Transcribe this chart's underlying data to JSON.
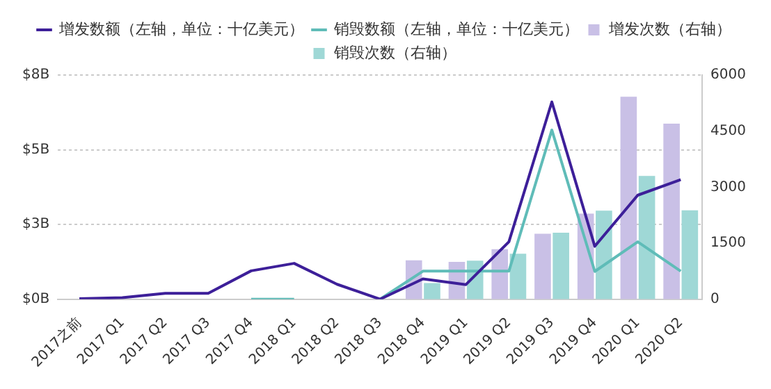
{
  "chart_data": {
    "type": "bar",
    "categories": [
      "2017之前",
      "2017 Q1",
      "2017 Q2",
      "2017 Q3",
      "2017 Q4",
      "2018 Q1",
      "2018 Q2",
      "2018 Q3",
      "2018 Q4",
      "2019 Q1",
      "2019 Q2",
      "2019 Q3",
      "2019 Q4",
      "2020 Q1",
      "2020 Q2"
    ],
    "series": [
      {
        "name": "增发数额（左轴，单位：十亿美元）",
        "type": "line",
        "color": "#3d1f99",
        "values": [
          0.02,
          0.05,
          0.2,
          0.2,
          0.95,
          1.2,
          0.5,
          0,
          0.68,
          0.49,
          1.92,
          6.6,
          1.77,
          3.48,
          4.0
        ]
      },
      {
        "name": "销毁数额（左轴，单位：十亿美元）",
        "type": "line",
        "color": "#5fbcb8",
        "values": [
          null,
          null,
          null,
          null,
          0,
          0,
          null,
          0,
          0.94,
          0.94,
          0.94,
          5.66,
          0.93,
          1.92,
          0.94
        ]
      },
      {
        "name": "增发次数（右轴）",
        "axis": "y2",
        "color": "#c9c0e6",
        "values": [
          0,
          0,
          0,
          0,
          null,
          0,
          0,
          null,
          1040,
          1000,
          1340,
          1750,
          2290,
          5420,
          4700
        ]
      },
      {
        "name": "销毁次数（右轴）",
        "axis": "y2",
        "color": "#9fd8d6",
        "values": [
          0,
          0,
          0,
          0,
          0,
          0,
          0,
          null,
          430,
          1030,
          1220,
          1780,
          2370,
          3300,
          2380
        ]
      }
    ],
    "ylim": [
      0,
      7.5
    ],
    "yticks": [
      {
        "value": 0,
        "label": "$0B"
      },
      {
        "value": 2.5,
        "label": "$3B"
      },
      {
        "value": 5,
        "label": "$5B"
      },
      {
        "value": 7.5,
        "label": "$8B"
      }
    ],
    "y2lim": [
      0,
      6000
    ],
    "y2ticks": [
      0,
      1500,
      3000,
      4500,
      6000
    ],
    "grid": "y",
    "legend": "top",
    "marker": "none",
    "line_style": "solid"
  }
}
